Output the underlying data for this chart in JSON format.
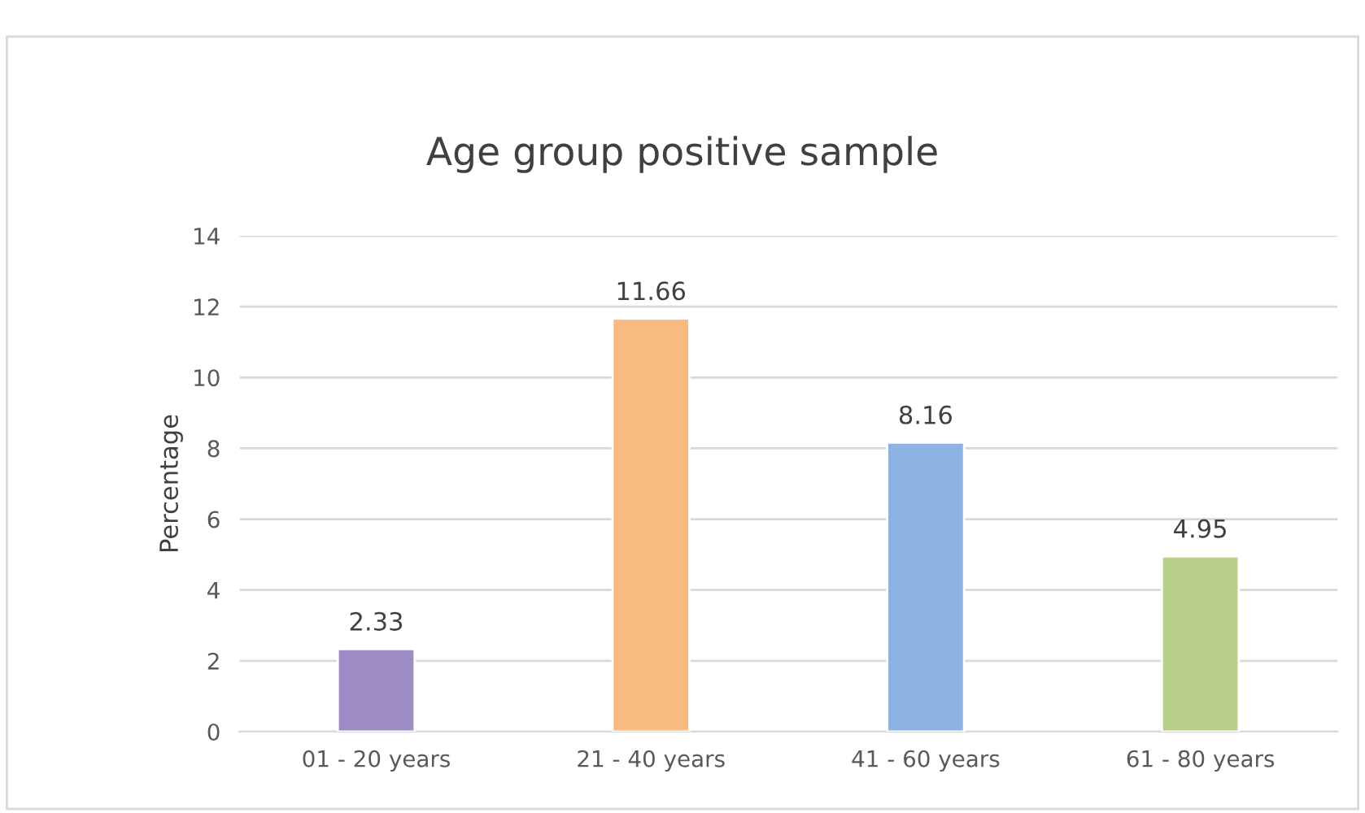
{
  "chart_data": {
    "type": "bar",
    "title": "Age group positive sample",
    "ylabel": "Percentage",
    "categories": [
      "01 - 20 years",
      "21 - 40 years",
      "41 - 60 years",
      "61 - 80 years"
    ],
    "values": [
      2.33,
      11.66,
      8.16,
      4.95
    ],
    "colors": [
      "#9d8bc6",
      "#f8ba80",
      "#8db3e2",
      "#b8d08c"
    ],
    "ylim": [
      0,
      14
    ],
    "yticks": [
      0,
      2,
      4,
      6,
      8,
      10,
      12,
      14
    ],
    "grid": "y",
    "data_labels": true
  }
}
